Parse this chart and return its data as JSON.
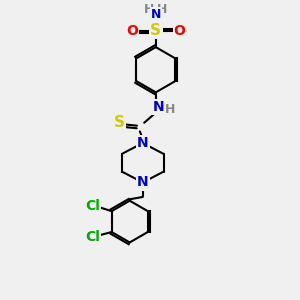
{
  "bg_color": "#f0f0f0",
  "atom_colors": {
    "C": "#000000",
    "N": "#0000cc",
    "S_thio": "#cccc00",
    "S_sulfonyl": "#cccc00",
    "O": "#ff0000",
    "Cl": "#00aa00",
    "H": "#888888"
  },
  "bond_color": "#000000",
  "bond_width": 1.5,
  "font_size": 10
}
